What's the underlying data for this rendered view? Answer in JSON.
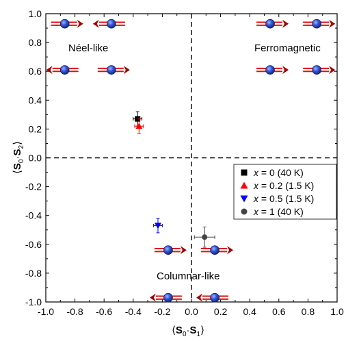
{
  "chart_data": {
    "type": "scatter",
    "title": "",
    "xlabel": "⟨S0·S1⟩",
    "ylabel": "⟨S0·S2⟩",
    "xlim": [
      -1.0,
      1.0
    ],
    "ylim": [
      -1.0,
      1.0
    ],
    "x_ticks": [
      "-1.0",
      "-0.8",
      "-0.6",
      "-0.4",
      "-0.2",
      "0.0",
      "0.2",
      "0.4",
      "0.6",
      "0.8",
      "1.0"
    ],
    "y_ticks": [
      "1.0",
      "0.8",
      "0.6",
      "0.4",
      "0.2",
      "0.0",
      "-0.2",
      "-0.4",
      "-0.6",
      "-0.8",
      "-1.0"
    ],
    "legend_position": "right-center",
    "series": [
      {
        "name": "x = 0 (40 K)",
        "marker": "square",
        "color": "#000000",
        "points": [
          {
            "x": -0.37,
            "y": 0.27,
            "xerr": 0.03,
            "yerr": 0.05
          }
        ]
      },
      {
        "name": "x = 0.2 (1.5 K)",
        "marker": "triangle-up",
        "color": "#ff0000",
        "points": [
          {
            "x": -0.36,
            "y": 0.22,
            "xerr": 0.03,
            "yerr": 0.05
          }
        ]
      },
      {
        "name": "x = 0.5 (1.5 K)",
        "marker": "triangle-down",
        "color": "#0000ff",
        "points": [
          {
            "x": -0.23,
            "y": -0.47,
            "xerr": 0.03,
            "yerr": 0.05
          }
        ]
      },
      {
        "name": "x = 1 (40 K)",
        "marker": "circle",
        "color": "#444444",
        "points": [
          {
            "x": 0.09,
            "y": -0.55,
            "xerr": 0.07,
            "yerr": 0.07
          }
        ]
      }
    ],
    "region_labels": {
      "neel": "Néel-like",
      "ferro": "Ferromagnetic",
      "columnar": "Columnar-like"
    },
    "spin_icons": [
      {
        "x": -0.87,
        "y": 0.93,
        "dir": "right"
      },
      {
        "x": -0.55,
        "y": 0.93,
        "dir": "left"
      },
      {
        "x": -0.87,
        "y": 0.61,
        "dir": "left"
      },
      {
        "x": -0.55,
        "y": 0.61,
        "dir": "right"
      },
      {
        "x": 0.54,
        "y": 0.93,
        "dir": "right"
      },
      {
        "x": 0.86,
        "y": 0.93,
        "dir": "right"
      },
      {
        "x": 0.54,
        "y": 0.61,
        "dir": "right"
      },
      {
        "x": 0.86,
        "y": 0.61,
        "dir": "right"
      },
      {
        "x": -0.16,
        "y": -0.64,
        "dir": "right"
      },
      {
        "x": 0.16,
        "y": -0.64,
        "dir": "right"
      },
      {
        "x": -0.16,
        "y": -0.97,
        "dir": "left"
      },
      {
        "x": 0.16,
        "y": -0.97,
        "dir": "left"
      }
    ],
    "colors": {
      "arrow": "#e01010",
      "arrow_dark": "#a00000",
      "spin_ball": "#1a3fa8",
      "spin_ball_light": "#6f94ff"
    }
  }
}
